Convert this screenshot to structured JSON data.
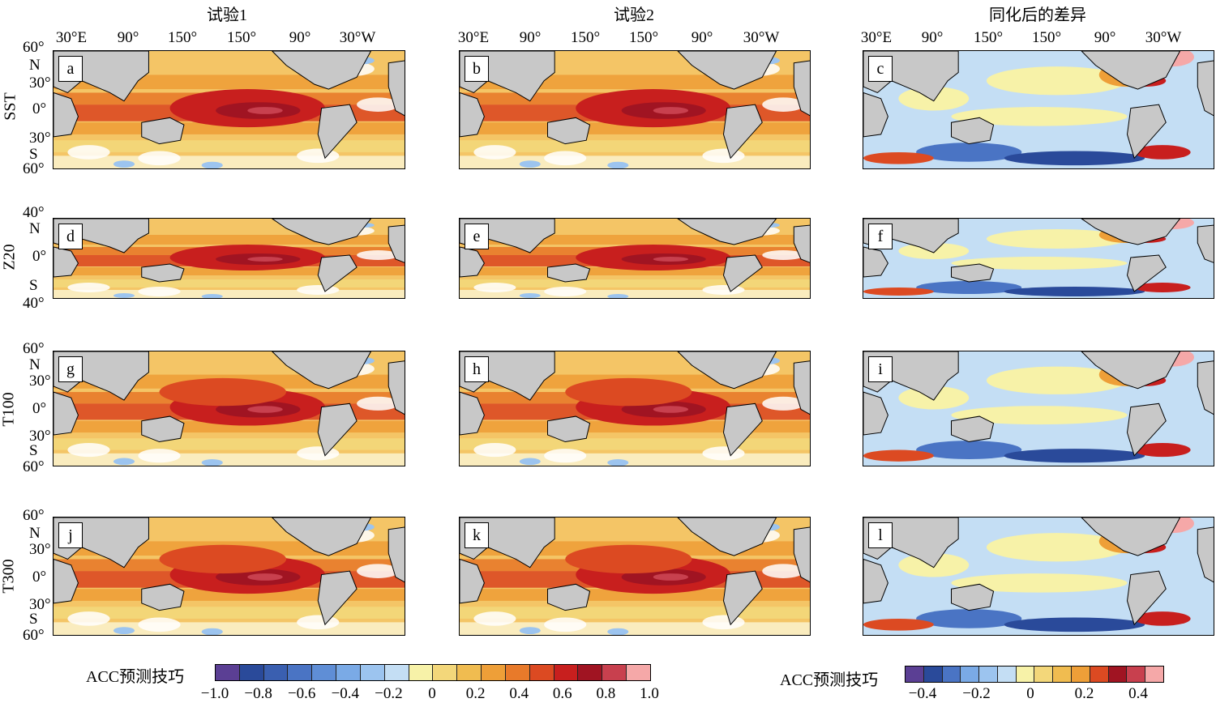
{
  "columns": [
    {
      "title": "试验1"
    },
    {
      "title": "试验2"
    },
    {
      "title": "同化后的差异"
    }
  ],
  "lon_ticks": [
    "30°E",
    "90°",
    "150°",
    "150°",
    "90°",
    "30°W"
  ],
  "rows": [
    {
      "name": "SST",
      "lat_top": "60°",
      "lat_n": "N",
      "lat_n2": "30°",
      "lat_eq": "0°",
      "lat_s1": "30°",
      "lat_s": "S",
      "lat_bottom": "60°"
    },
    {
      "name": "Z20",
      "lat_top": "40°",
      "lat_n": "N",
      "lat_n2": "",
      "lat_eq": "0°",
      "lat_s1": "",
      "lat_s": "S",
      "lat_bottom": "40°"
    },
    {
      "name": "T100",
      "lat_top": "60°",
      "lat_n": "N",
      "lat_n2": "30°",
      "lat_eq": "0°",
      "lat_s1": "30°",
      "lat_s": "S",
      "lat_bottom": "60°"
    },
    {
      "name": "T300",
      "lat_top": "60°",
      "lat_n": "N",
      "lat_n2": "30°",
      "lat_eq": "0°",
      "lat_s1": "30°",
      "lat_s": "S",
      "lat_bottom": "60°"
    }
  ],
  "panel_letters": [
    "a",
    "b",
    "c",
    "d",
    "e",
    "f",
    "g",
    "h",
    "i",
    "j",
    "k",
    "l"
  ],
  "colorbar_left": {
    "label": "ACC预测技巧",
    "ticks": [
      "−1.0",
      "−0.8",
      "−0.6",
      "−0.4",
      "−0.2",
      "0",
      "0.2",
      "0.4",
      "0.6",
      "0.8",
      "1.0"
    ],
    "colors": [
      "#5b3f94",
      "#2a4a9a",
      "#3a5fb0",
      "#4a74c4",
      "#5f8ed6",
      "#7aaae6",
      "#9cc4ef",
      "#c4def4",
      "#f7f2a8",
      "#f3d77a",
      "#f0bc50",
      "#ee9f38",
      "#e87a2a",
      "#dc4a22",
      "#c81f1e",
      "#a01422",
      "#c8404e",
      "#f5a8a8"
    ]
  },
  "colorbar_right": {
    "label": "ACC预测技巧",
    "ticks": [
      "−0.4",
      "−0.2",
      "0",
      "0.2",
      "0.4"
    ],
    "colors": [
      "#5b3f94",
      "#2a4a9a",
      "#4a74c4",
      "#7aaae6",
      "#9cc4ef",
      "#c4def4",
      "#f7f2a8",
      "#f3d77a",
      "#f0bc50",
      "#ee9f38",
      "#dc4a22",
      "#a01422",
      "#c8404e",
      "#f5a8a8"
    ]
  },
  "chart_data": {
    "type": "heatmap",
    "description_fields": "12 global ocean maps of anomaly correlation coefficient (ACC) forecast skill",
    "variables": [
      "SST",
      "Z20",
      "T100",
      "T300"
    ],
    "experiments": [
      "试验1",
      "试验2",
      "同化后的差异"
    ],
    "left_scale_range": [
      -1.0,
      1.0
    ],
    "right_scale_range": [
      -0.5,
      0.5
    ],
    "lon_range": [
      "30°E",
      "30°W"
    ],
    "lat_range_default": [
      "60°S",
      "60°N"
    ],
    "lat_range_z20": [
      "40°S",
      "40°N"
    ],
    "legend_placement": "bottom"
  }
}
